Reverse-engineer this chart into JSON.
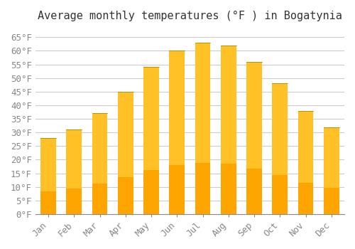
{
  "title": "Average monthly temperatures (°F ) in Bogatynia",
  "months": [
    "Jan",
    "Feb",
    "Mar",
    "Apr",
    "May",
    "Jun",
    "Jul",
    "Aug",
    "Sep",
    "Oct",
    "Nov",
    "Dec"
  ],
  "values": [
    28,
    31,
    37,
    45,
    54,
    60,
    63,
    62,
    56,
    48,
    38,
    32
  ],
  "bar_color_top": "#FFC125",
  "bar_color_bottom": "#FFA500",
  "background_color": "#ffffff",
  "grid_color": "#cccccc",
  "ylabel_ticks": [
    0,
    5,
    10,
    15,
    20,
    25,
    30,
    35,
    40,
    45,
    50,
    55,
    60,
    65
  ],
  "ylim": [
    0,
    68
  ],
  "title_fontsize": 11,
  "tick_fontsize": 9,
  "title_font": "monospace",
  "tick_font": "monospace"
}
